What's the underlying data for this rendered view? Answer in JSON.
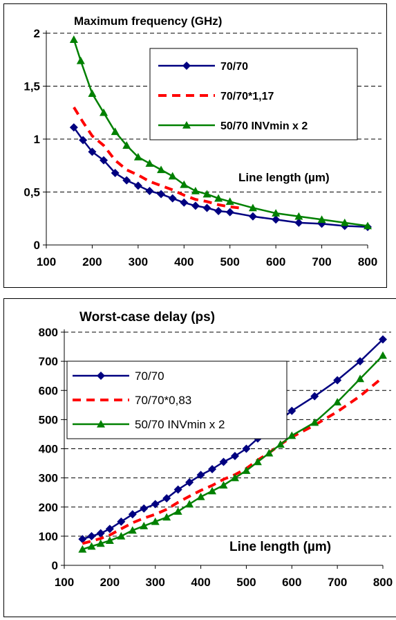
{
  "chart_data": [
    {
      "type": "line",
      "title": "Maximum frequency (GHz)",
      "xlabel": "Line length (µm)",
      "ylabel": "",
      "xlim": [
        100,
        800
      ],
      "ylim": [
        0,
        2
      ],
      "xticks": [
        "100",
        "200",
        "300",
        "400",
        "500",
        "600",
        "700",
        "800"
      ],
      "yticks": [
        "0",
        "0,5",
        "1",
        "1,5",
        "2"
      ],
      "grid": "horizontal dashed",
      "legend_position": "upper-right",
      "series": [
        {
          "name": "70/70",
          "color": "#000080",
          "marker": "diamond",
          "dashed": false,
          "x": [
            160,
            180,
            200,
            225,
            250,
            275,
            300,
            325,
            350,
            375,
            400,
            425,
            450,
            475,
            500,
            550,
            600,
            650,
            700,
            750,
            800
          ],
          "y": [
            1.11,
            0.99,
            0.88,
            0.8,
            0.68,
            0.61,
            0.56,
            0.51,
            0.48,
            0.44,
            0.4,
            0.37,
            0.35,
            0.32,
            0.31,
            0.27,
            0.24,
            0.21,
            0.2,
            0.18,
            0.17
          ]
        },
        {
          "name": "70/70*1,17",
          "color": "#ff0000",
          "marker": "none",
          "dashed": true,
          "x": [
            160,
            180,
            200,
            225,
            250,
            275,
            300,
            325,
            350,
            375,
            400,
            425,
            450,
            475,
            500,
            520
          ],
          "y": [
            1.3,
            1.16,
            1.03,
            0.94,
            0.8,
            0.71,
            0.66,
            0.6,
            0.56,
            0.52,
            0.47,
            0.43,
            0.41,
            0.38,
            0.36,
            0.35
          ]
        },
        {
          "name": "50/70 INVmin x 2",
          "color": "#008000",
          "marker": "triangle",
          "dashed": false,
          "x": [
            160,
            175,
            200,
            225,
            250,
            275,
            300,
            325,
            350,
            375,
            400,
            425,
            450,
            475,
            500,
            550,
            600,
            650,
            700,
            750,
            800
          ],
          "y": [
            1.94,
            1.74,
            1.43,
            1.25,
            1.07,
            0.94,
            0.83,
            0.77,
            0.71,
            0.65,
            0.57,
            0.51,
            0.48,
            0.44,
            0.41,
            0.35,
            0.3,
            0.27,
            0.24,
            0.21,
            0.18
          ]
        }
      ]
    },
    {
      "type": "line",
      "title": "Worst-case delay (ps)",
      "xlabel": "Line length (µm)",
      "ylabel": "",
      "xlim": [
        100,
        800
      ],
      "ylim": [
        0,
        800
      ],
      "xticks": [
        "100",
        "200",
        "300",
        "400",
        "500",
        "600",
        "700",
        "800"
      ],
      "yticks": [
        "0",
        "100",
        "200",
        "300",
        "400",
        "500",
        "600",
        "700",
        "800"
      ],
      "grid": "horizontal dashed",
      "legend_position": "upper-left",
      "series": [
        {
          "name": "70/70",
          "color": "#000080",
          "marker": "diamond",
          "dashed": false,
          "x": [
            140,
            160,
            180,
            200,
            225,
            250,
            275,
            300,
            325,
            350,
            375,
            400,
            425,
            450,
            475,
            500,
            525,
            550,
            575,
            600,
            650,
            700,
            750,
            800
          ],
          "y": [
            90,
            100,
            110,
            125,
            150,
            175,
            195,
            210,
            230,
            260,
            285,
            310,
            330,
            355,
            375,
            400,
            435,
            465,
            500,
            530,
            580,
            635,
            700,
            775
          ]
        },
        {
          "name": "70/70*0,83",
          "color": "#ff0000",
          "marker": "none",
          "dashed": true,
          "x": [
            140,
            160,
            180,
            200,
            225,
            250,
            275,
            300,
            325,
            350,
            375,
            400,
            425,
            450,
            475,
            500,
            525,
            550,
            575,
            600,
            650,
            700,
            750,
            800
          ],
          "y": [
            75,
            83,
            92,
            104,
            125,
            146,
            162,
            175,
            192,
            216,
            237,
            257,
            274,
            295,
            311,
            332,
            361,
            386,
            415,
            440,
            481,
            527,
            581,
            645
          ]
        },
        {
          "name": "50/70 INVmin x 2",
          "color": "#008000",
          "marker": "triangle",
          "dashed": false,
          "x": [
            140,
            160,
            180,
            200,
            225,
            250,
            275,
            300,
            325,
            350,
            375,
            400,
            425,
            450,
            475,
            500,
            525,
            550,
            575,
            600,
            650,
            700,
            750,
            800
          ],
          "y": [
            55,
            65,
            75,
            85,
            100,
            120,
            135,
            150,
            165,
            185,
            210,
            235,
            255,
            275,
            300,
            325,
            355,
            385,
            415,
            445,
            490,
            560,
            640,
            720
          ]
        }
      ]
    }
  ]
}
